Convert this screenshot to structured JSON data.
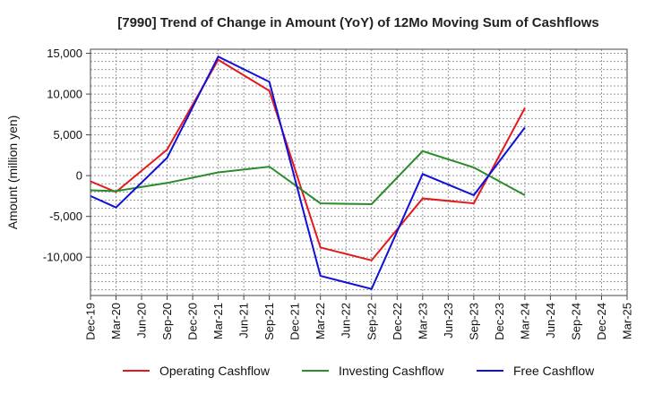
{
  "chart_data": {
    "type": "line",
    "title": "[7990]  Trend of Change in Amount (YoY) of 12Mo Moving Sum of Cashflows",
    "xlabel": "",
    "ylabel": "Amount (million yen)",
    "ylim": [
      -14700,
      15500
    ],
    "yticks": [
      15000,
      10000,
      5000,
      0,
      -5000,
      -10000
    ],
    "ytick_labels": [
      "15,000",
      "10,000",
      "5,000",
      "0",
      "-5,000",
      "-10,000"
    ],
    "categories": [
      "Dec-19",
      "Mar-20",
      "Jun-20",
      "Sep-20",
      "Dec-20",
      "Mar-21",
      "Jun-21",
      "Sep-21",
      "Dec-21",
      "Mar-22",
      "Jun-22",
      "Sep-22",
      "Dec-22",
      "Mar-23",
      "Jun-23",
      "Sep-23",
      "Dec-23",
      "Mar-24",
      "Jun-24",
      "Sep-24",
      "Dec-24",
      "Mar-25"
    ],
    "grid": true,
    "legend_position": "bottom",
    "series": [
      {
        "name": "Operating Cashflow",
        "color": "#e31a1c",
        "values": [
          -700,
          -2000,
          null,
          3200,
          null,
          14200,
          null,
          10400,
          null,
          -8800,
          null,
          -10400,
          null,
          -2800,
          null,
          -3400,
          null,
          8300,
          null,
          null,
          null,
          null
        ]
      },
      {
        "name": "Investing Cashflow",
        "color": "#2a8c2a",
        "values": [
          -1800,
          -1900,
          null,
          -900,
          null,
          400,
          null,
          1100,
          null,
          -3400,
          null,
          -3500,
          null,
          3000,
          null,
          1000,
          null,
          -2400,
          null,
          null,
          null,
          null
        ]
      },
      {
        "name": "Free Cashflow",
        "color": "#1010d8",
        "values": [
          -2500,
          -3900,
          null,
          2200,
          null,
          14600,
          null,
          11500,
          null,
          -12300,
          null,
          -13900,
          null,
          200,
          null,
          -2400,
          null,
          5900,
          null,
          null,
          null,
          null
        ]
      }
    ]
  }
}
